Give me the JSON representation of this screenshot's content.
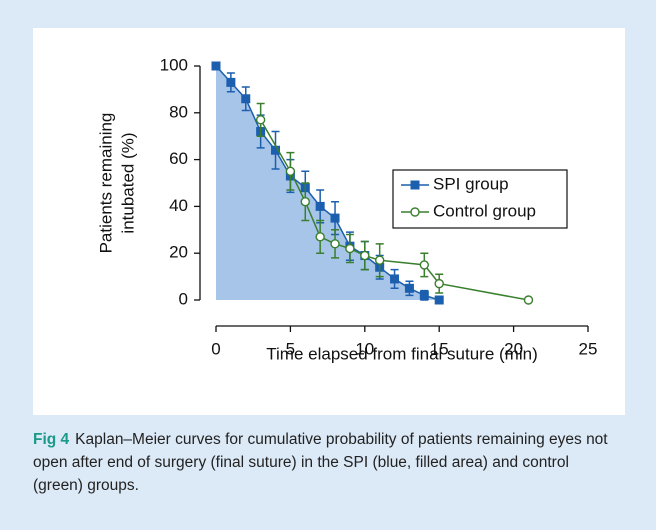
{
  "chart_data": {
    "type": "line",
    "xlabel": "Time elapsed from final suture (min)",
    "ylabel": [
      "Patients remaining",
      "intubated (%)"
    ],
    "xlim": [
      0,
      25
    ],
    "xticks": [
      0,
      5,
      10,
      15,
      20,
      25
    ],
    "ylim": [
      0,
      100
    ],
    "yticks": [
      0,
      20,
      40,
      60,
      80,
      100
    ],
    "legend": "right",
    "series": [
      {
        "name": "SPI group",
        "color": "#1c5fae",
        "marker": "square",
        "fill": "#a7c5e8",
        "x": [
          0,
          1,
          2,
          3,
          4,
          5,
          6,
          7,
          8,
          9,
          10,
          11,
          12,
          13,
          14,
          15
        ],
        "values": [
          100,
          93,
          86,
          72,
          64,
          53,
          48,
          40,
          35,
          23,
          19,
          14,
          9,
          5,
          2,
          0
        ],
        "errors": [
          null,
          4,
          5,
          7,
          8,
          7,
          7,
          7,
          7,
          6,
          6,
          5,
          4,
          3,
          2,
          null
        ]
      },
      {
        "name": "Control group",
        "color": "#3a7f2e",
        "marker": "circle",
        "x": [
          3,
          5,
          6,
          7,
          8,
          9,
          10,
          11,
          14,
          15,
          21
        ],
        "values": [
          77,
          55,
          42,
          27,
          24,
          22,
          19,
          17,
          15,
          7,
          0
        ],
        "errors": [
          7,
          8,
          8,
          7,
          6,
          6,
          6,
          7,
          5,
          4,
          null
        ]
      }
    ]
  },
  "caption": {
    "label": "Fig 4",
    "text": "Kaplan–Meier curves for cumulative probability of patients remaining eyes not open after end of surgery (final suture) in the SPI (blue, filled area) and control (green) groups."
  }
}
